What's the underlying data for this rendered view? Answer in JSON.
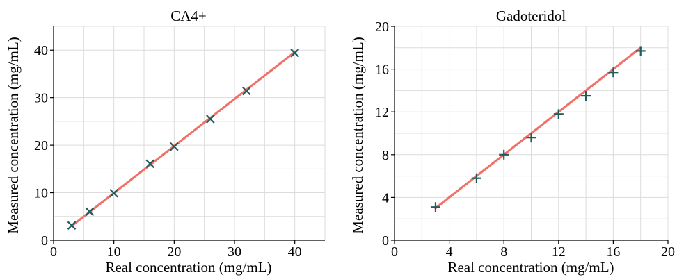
{
  "chart_data": [
    {
      "type": "scatter",
      "title": "CA4+",
      "xlabel": "Real concentration (mg/mL)",
      "ylabel": "Measured concentration (mg/mL)",
      "xlim": [
        0,
        45
      ],
      "ylim": [
        0,
        45
      ],
      "xticks": [
        0,
        10,
        20,
        30,
        40
      ],
      "yticks": [
        0,
        10,
        20,
        30,
        40
      ],
      "grid_step": 5,
      "grid": true,
      "marker": "x",
      "marker_color": "#1f5c5c",
      "fit_color": "#f07167",
      "points": {
        "x": [
          3,
          6,
          10,
          16,
          20,
          26,
          32,
          40
        ],
        "y": [
          3.1,
          6.0,
          9.9,
          16.1,
          19.7,
          25.5,
          31.4,
          39.4
        ]
      },
      "fit_line": {
        "x": [
          3,
          40
        ],
        "y": [
          3.0,
          39.6
        ]
      }
    },
    {
      "type": "scatter",
      "title": "Gadoteridol",
      "xlabel": "Real concentration (mg/mL)",
      "ylabel": "Measured concentration (mg/mL)",
      "xlim": [
        0,
        20
      ],
      "ylim": [
        0,
        20
      ],
      "xticks": [
        0,
        4,
        8,
        12,
        16,
        20
      ],
      "yticks": [
        0,
        4,
        8,
        12,
        16,
        20
      ],
      "grid_step": 2,
      "grid": true,
      "marker": "+",
      "marker_color": "#1f5c5c",
      "fit_color": "#f07167",
      "points": {
        "x": [
          3,
          6,
          8,
          10,
          12,
          14,
          16,
          18
        ],
        "y": [
          3.1,
          5.8,
          8.0,
          9.6,
          11.8,
          13.5,
          15.7,
          17.7
        ]
      },
      "fit_line": {
        "x": [
          3,
          18
        ],
        "y": [
          3.0,
          18.0
        ]
      }
    }
  ]
}
